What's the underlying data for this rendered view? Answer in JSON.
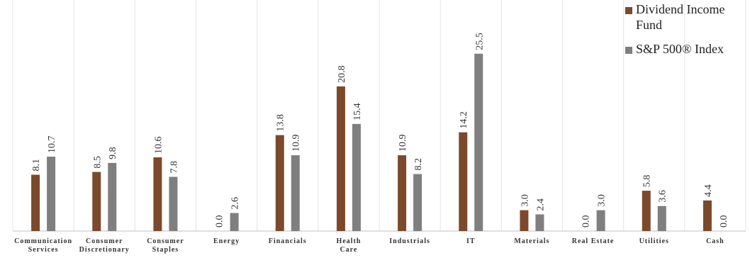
{
  "chart_data": {
    "type": "bar",
    "categories": [
      [
        "Communication",
        "Services"
      ],
      [
        "Consumer",
        "Discretionary"
      ],
      [
        "Consumer",
        "Staples"
      ],
      [
        "Energy"
      ],
      [
        "Financials"
      ],
      [
        "Health",
        "Care"
      ],
      [
        "Industrials"
      ],
      [
        "IT"
      ],
      [
        "Materials"
      ],
      [
        "Real Estate"
      ],
      [
        "Utilities"
      ],
      [
        "Cash"
      ]
    ],
    "series": [
      {
        "name": "Dividend Income Fund",
        "color": "#7b4a2d",
        "values": [
          8.1,
          8.5,
          10.6,
          0.0,
          13.8,
          20.8,
          10.9,
          14.2,
          3.0,
          0.0,
          5.8,
          4.4
        ],
        "labels": [
          "8.1",
          "8.5",
          "10.6",
          "0.0",
          "13.8",
          "20.8",
          "10.9",
          "14.2",
          "3.0",
          "0.0",
          "5.8",
          "4.4"
        ]
      },
      {
        "name": "S&P 500® Index",
        "color": "#7f7f7f",
        "values": [
          10.7,
          9.8,
          7.8,
          2.6,
          10.9,
          15.4,
          8.2,
          25.5,
          2.4,
          3.0,
          3.6,
          0.0
        ],
        "labels": [
          "10.7",
          "9.8",
          "7.8",
          "2.6",
          "10.9",
          "15.4",
          "8.2",
          "25.5",
          "2.4",
          "3.0",
          "3.6",
          "0.0"
        ]
      }
    ],
    "ylim": [
      0,
      32
    ],
    "grid": "vertical category separators",
    "legend": "top-right",
    "title": "",
    "xlabel": "",
    "ylabel": ""
  },
  "legend": {
    "items": [
      {
        "line1": "Dividend Income",
        "line2": "Fund",
        "color": "#7b4a2d"
      },
      {
        "line1": "S&P 500® Index",
        "line2": "",
        "color": "#7f7f7f"
      }
    ]
  }
}
